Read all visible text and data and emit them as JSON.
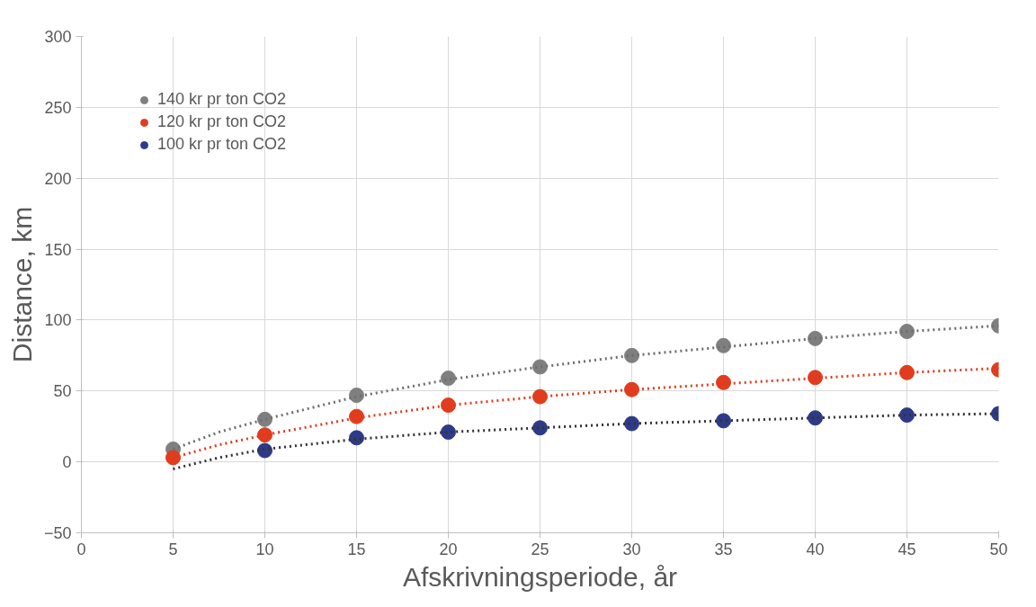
{
  "chart_data": {
    "type": "scatter",
    "xlabel": "Afskrivningsperiode, år",
    "ylabel": "Distance, km",
    "xlim": [
      0,
      50
    ],
    "ylim": [
      -50,
      300
    ],
    "xticks": [
      0,
      5,
      10,
      15,
      20,
      25,
      30,
      35,
      40,
      45,
      50
    ],
    "yticks": [
      -50,
      0,
      50,
      100,
      150,
      200,
      250,
      300
    ],
    "grid": true,
    "legend": "top left",
    "marker": "circle",
    "x": [
      5,
      10,
      15,
      20,
      25,
      30,
      35,
      40,
      45,
      50
    ],
    "series": [
      {
        "name": "140 kr pr ton CO2",
        "color": "#7f7f7f",
        "values": [
          9,
          30,
          47,
          59,
          67,
          75,
          82,
          87,
          92,
          96
        ]
      },
      {
        "name": "120 kr pr ton CO2",
        "color": "#e03c1e",
        "values": [
          3,
          19,
          32,
          40,
          46,
          51,
          56,
          59.5,
          63,
          65
        ]
      },
      {
        "name": "100 kr pr ton CO2",
        "color": "#2e3a87",
        "values": [
          null,
          8,
          17,
          21,
          24,
          27,
          29,
          31,
          33,
          34
        ]
      },
      {
        "type": "line",
        "marker": "none",
        "line_style": "dotted",
        "color": "#6e6e6e",
        "x": [
          5,
          7.5,
          10,
          15,
          20,
          25,
          30,
          35,
          40,
          45,
          50
        ],
        "values": [
          9,
          21,
          30,
          46,
          58,
          67,
          75,
          81,
          87,
          92,
          96
        ]
      },
      {
        "type": "line",
        "marker": "none",
        "line_style": "dotted",
        "color": "#e03c1e",
        "x": [
          5,
          7.5,
          10,
          15,
          20,
          25,
          30,
          35,
          40,
          45,
          50
        ],
        "values": [
          3,
          12,
          19,
          31,
          40,
          46,
          51,
          55,
          59,
          63,
          66
        ]
      },
      {
        "type": "line",
        "marker": "none",
        "line_style": "dotted",
        "color": "#333333",
        "x": [
          5,
          7.5,
          10,
          15,
          20,
          25,
          30,
          35,
          40,
          45,
          50
        ],
        "values": [
          -5,
          3,
          9,
          16,
          21,
          24,
          27,
          29,
          31,
          33,
          34
        ]
      }
    ]
  }
}
